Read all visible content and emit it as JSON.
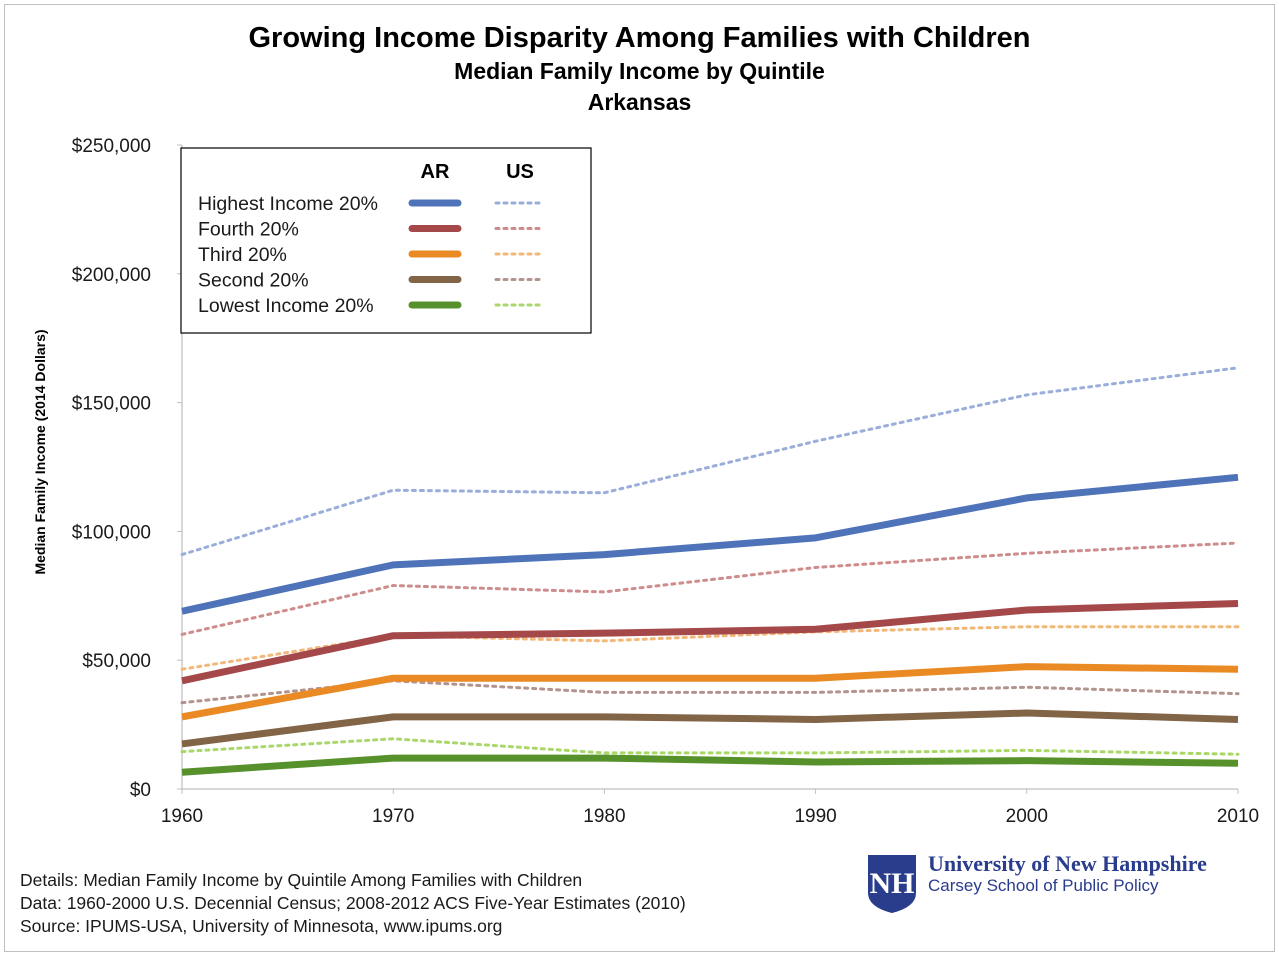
{
  "colors": {
    "Highest Income 20%": "#4f73b9",
    "Fourth 20%": "#a4484a",
    "Third 20%": "#ea8a25",
    "Second 20%": "#826447",
    "Lowest Income 20%": "#56912b",
    "us_highest": "#9aaedb",
    "us_fourth": "#cf8c8c",
    "us_third": "#f3b779",
    "us_second": "#b3938d",
    "us_lowest": "#a9d76a",
    "unh_blue": "#2a3c8c"
  },
  "chart_data": {
    "type": "line",
    "title": "Growing Income Disparity Among Families with Children",
    "subtitle": [
      "Median Family Income by Quintile",
      "Arkansas"
    ],
    "xlabel": "",
    "ylabel": "Median Family Income (2014 Dollars)",
    "x": [
      1960,
      1970,
      1980,
      1990,
      2000,
      2010
    ],
    "x_tick_labels": [
      "1960",
      "1970",
      "1980",
      "1990",
      "2000",
      "2010"
    ],
    "ylim": [
      0,
      250000
    ],
    "y_ticks": [
      0,
      50000,
      100000,
      150000,
      200000,
      250000
    ],
    "y_tick_labels": [
      "$0",
      "$50,000",
      "$100,000",
      "$150,000",
      "$200,000",
      "$250,000"
    ],
    "grid": false,
    "legend": {
      "placement": "top-left",
      "col_headers": [
        "AR",
        "US"
      ],
      "entries": [
        "Highest Income 20%",
        "Fourth 20%",
        "Third 20%",
        "Second 20%",
        "Lowest Income 20%"
      ]
    },
    "series": [
      {
        "group": "AR",
        "quintile": "Highest Income 20%",
        "style": "solid",
        "values": [
          69000,
          87000,
          91000,
          97500,
          113000,
          121000
        ]
      },
      {
        "group": "AR",
        "quintile": "Fourth 20%",
        "style": "solid",
        "values": [
          42000,
          59500,
          60500,
          62000,
          69500,
          72000
        ]
      },
      {
        "group": "AR",
        "quintile": "Third 20%",
        "style": "solid",
        "values": [
          28000,
          43000,
          43000,
          43000,
          47500,
          46500
        ]
      },
      {
        "group": "AR",
        "quintile": "Second 20%",
        "style": "solid",
        "values": [
          17500,
          28000,
          28000,
          27000,
          29500,
          27000
        ]
      },
      {
        "group": "AR",
        "quintile": "Lowest Income 20%",
        "style": "solid",
        "values": [
          6500,
          12000,
          12000,
          10500,
          11000,
          10000
        ]
      },
      {
        "group": "US",
        "quintile": "Highest Income 20%",
        "style": "dotted",
        "values": [
          91000,
          116000,
          115000,
          135000,
          153000,
          163500
        ]
      },
      {
        "group": "US",
        "quintile": "Fourth 20%",
        "style": "dotted",
        "values": [
          60000,
          79000,
          76500,
          86000,
          91500,
          95500
        ]
      },
      {
        "group": "US",
        "quintile": "Third 20%",
        "style": "dotted",
        "values": [
          46500,
          59500,
          57500,
          61000,
          63000,
          63000
        ]
      },
      {
        "group": "US",
        "quintile": "Second 20%",
        "style": "dotted",
        "values": [
          33500,
          42000,
          37500,
          37500,
          39500,
          37000
        ]
      },
      {
        "group": "US",
        "quintile": "Lowest Income 20%",
        "style": "dotted",
        "values": [
          14500,
          19500,
          14000,
          14000,
          15000,
          13500
        ]
      }
    ]
  },
  "footer": {
    "details": "Details: Median Family Income by Quintile Among Families with Children",
    "data": "Data: 1960-2000 U.S. Decennial Census; 2008-2012 ACS Five-Year Estimates (2010)",
    "source": "Source: IPUMS-USA, University of Minnesota, www.ipums.org"
  },
  "logo": {
    "name": "University of New Hampshire",
    "school": "Carsey School of Public Policy",
    "mark": "NH"
  }
}
